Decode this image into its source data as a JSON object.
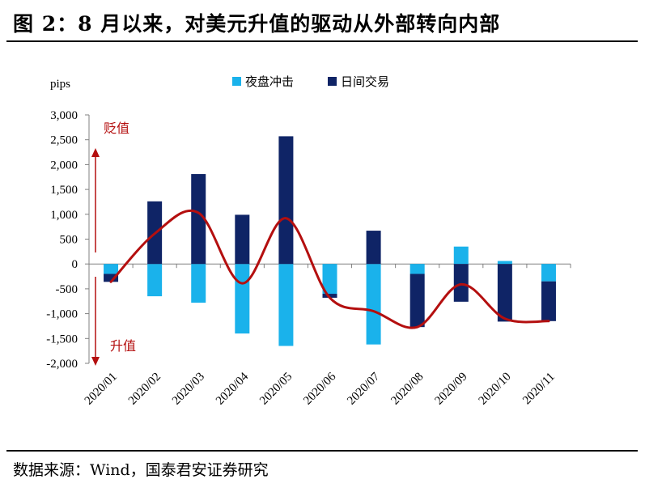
{
  "header": {
    "title": "图 2：8 月以来，对美元升值的驱动从外部转向内部"
  },
  "footer": {
    "source": "数据来源：Wind，国泰君安证券研究"
  },
  "colors": {
    "night_session": "#1AB2EB",
    "day_session": "#0F2466",
    "total_line": "#B40F0F",
    "annotation": "#B40F0F"
  },
  "chart_data": {
    "type": "bar",
    "stacked": true,
    "unit_label": "pips",
    "categories": [
      "2020/01",
      "2020/02",
      "2020/03",
      "2020/04",
      "2020/05",
      "2020/06",
      "2020/07",
      "2020/08",
      "2020/09",
      "2020/10",
      "2020/11"
    ],
    "series": [
      {
        "name": "夜盘冲击",
        "type": "bar",
        "color": "#1AB2EB",
        "values": [
          -200,
          -650,
          -780,
          -1400,
          -1650,
          -600,
          -1620,
          -200,
          350,
          60,
          -350
        ]
      },
      {
        "name": "日间交易",
        "type": "bar",
        "color": "#0F2466",
        "values": [
          -160,
          1260,
          1810,
          990,
          2570,
          -80,
          670,
          -1070,
          -760,
          -1160,
          -800
        ]
      },
      {
        "type": "line",
        "color": "#B40F0F",
        "smooth": true,
        "values": [
          -360,
          610,
          1030,
          -390,
          920,
          -680,
          -950,
          -1270,
          -410,
          -1100,
          -1150
        ]
      }
    ],
    "ylim": [
      -2000,
      3000
    ],
    "yticks": [
      3000,
      2500,
      2000,
      1500,
      1000,
      500,
      0,
      -500,
      -1000,
      -1500,
      -2000
    ],
    "ytick_labels": [
      "3,000",
      "2,500",
      "2,000",
      "1,500",
      "1,000",
      "500",
      "0",
      "-500",
      "-1,000",
      "-1,500",
      "-2,000"
    ],
    "annotations": {
      "up": "贬值",
      "down": "升值"
    },
    "legend_position": "top",
    "grid": false
  }
}
